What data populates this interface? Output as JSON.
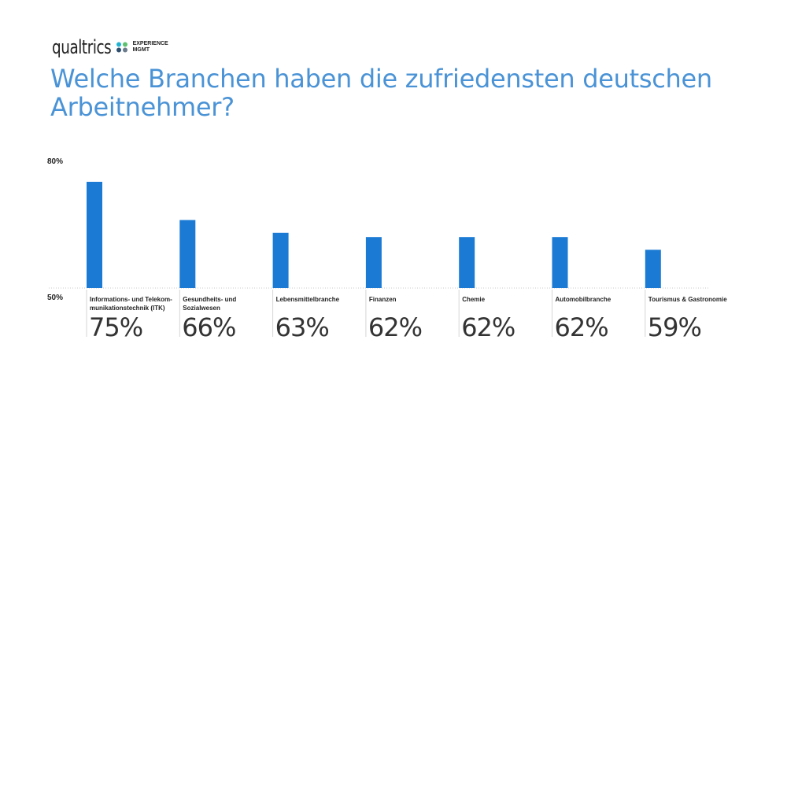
{
  "brand": {
    "name": "qualtrics",
    "tag_line1": "EXPERIENCE",
    "tag_line2": "MGMT",
    "dot_colors": [
      "#21b2d1",
      "#5cc26f",
      "#2f4f6f",
      "#6b7c8c"
    ]
  },
  "chart_data": {
    "type": "bar",
    "title": "Welche Branchen haben die zufriedensten deutschen Arbeitnehmer?",
    "xlabel": "",
    "ylabel": "",
    "ylim": [
      50,
      80
    ],
    "ytick_labels": [
      "80%",
      "50%"
    ],
    "categories": [
      "Informations- und Telekom-munikationstechnik (ITK)",
      "Gesundheits- und Sozialwesen",
      "Lebensmittelbranche",
      "Finanzen",
      "Chemie",
      "Automobilbranche",
      "Tourismus & Gastronomie"
    ],
    "category_lines": [
      [
        "Informations- und Telekom-",
        "munikationstechnik (ITK)"
      ],
      [
        "Gesundheits- und",
        "Sozialwesen"
      ],
      [
        "Lebensmittelbranche"
      ],
      [
        "Finanzen"
      ],
      [
        "Chemie"
      ],
      [
        "Automobilbranche"
      ],
      [
        "Tourismus & Gastronomie"
      ]
    ],
    "values": [
      75,
      66,
      63,
      62,
      62,
      62,
      59
    ],
    "value_labels": [
      "75%",
      "66%",
      "63%",
      "62%",
      "62%",
      "62%",
      "59%"
    ],
    "bar_color": "#1a7ad4",
    "grid": false
  }
}
